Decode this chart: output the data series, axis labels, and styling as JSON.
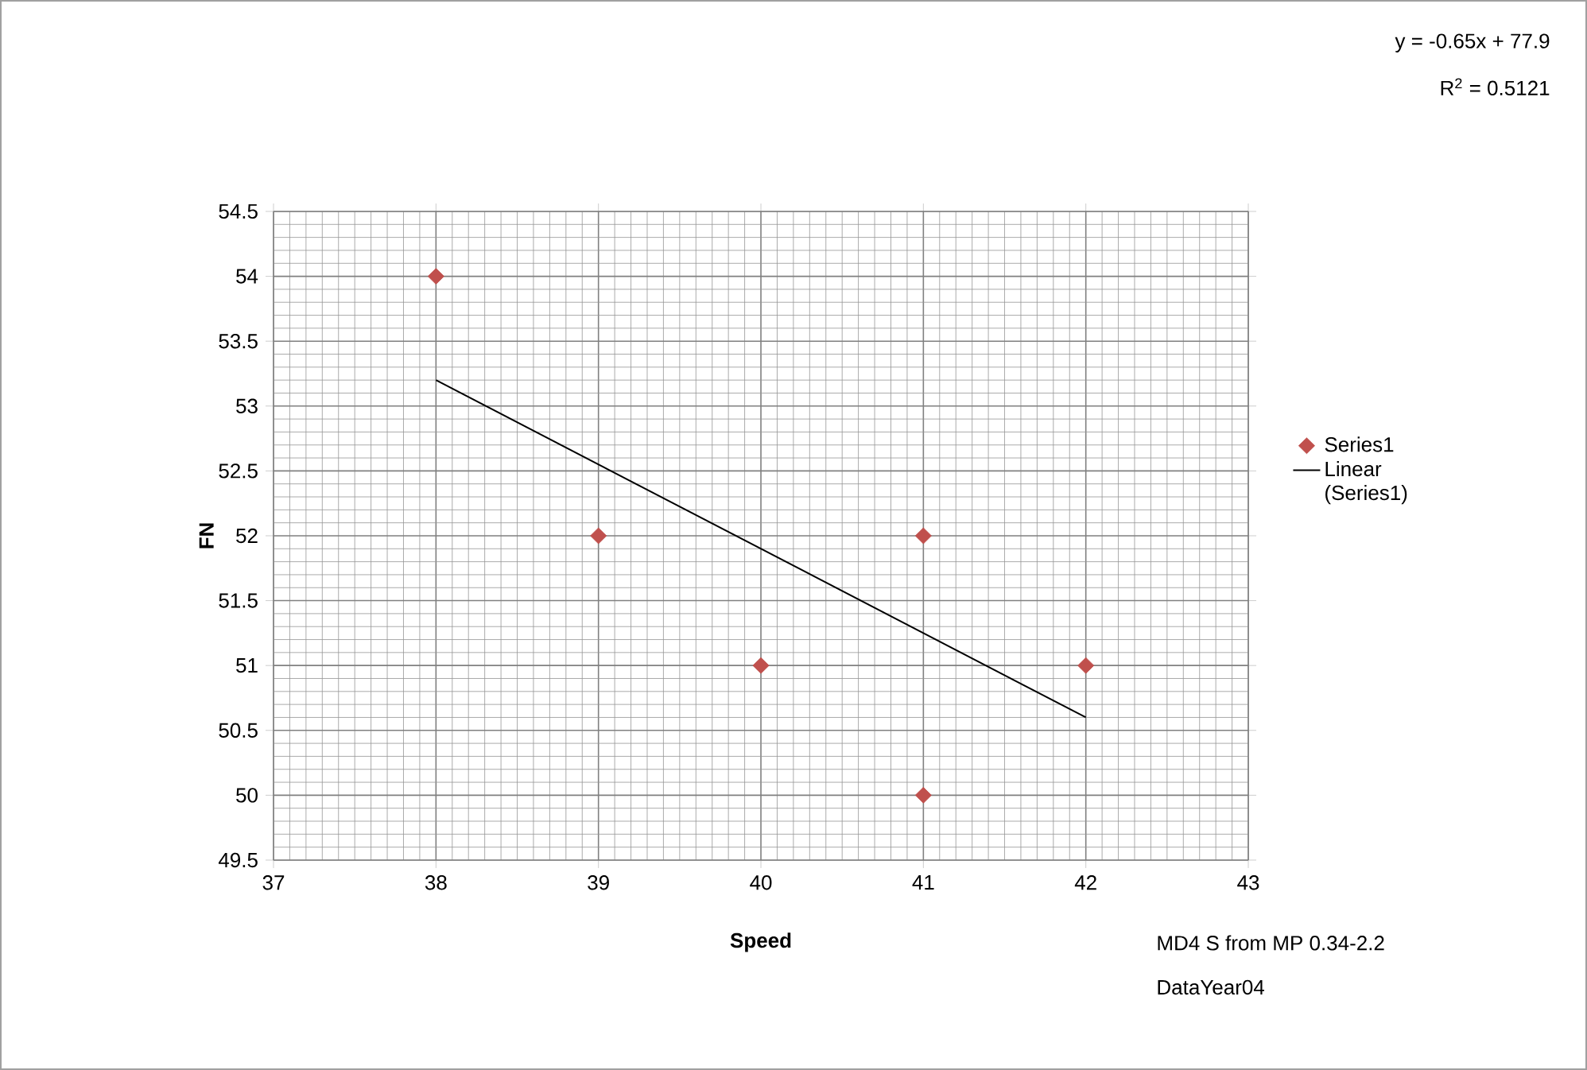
{
  "chart_data": {
    "type": "scatter",
    "xlabel": "Speed",
    "ylabel": "FN",
    "xlim": [
      37,
      43
    ],
    "xticks": [
      37,
      38,
      39,
      40,
      41,
      42,
      43
    ],
    "ylim": [
      49.5,
      54.5
    ],
    "yticks": [
      49.5,
      50,
      50.5,
      51,
      51.5,
      52,
      52.5,
      53,
      53.5,
      54,
      54.5
    ],
    "grid": true,
    "legend": "right",
    "series": [
      {
        "name": "Series1",
        "marker": "diamond",
        "color": "#c0504d",
        "x": [
          38,
          39,
          40,
          41,
          41,
          42
        ],
        "values": [
          54,
          52,
          51,
          52,
          50,
          51
        ]
      },
      {
        "name": "Linear (Series1)",
        "type": "line",
        "color": "#000000",
        "x": [
          38,
          42
        ],
        "values": [
          53.2,
          50.6
        ]
      }
    ],
    "annotations": [
      "y = -0.65x + 77.9",
      "R$^{2}$ = 0.5121",
      "MD4 S from MP 0.34-2.2",
      "DataYear04"
    ]
  }
}
